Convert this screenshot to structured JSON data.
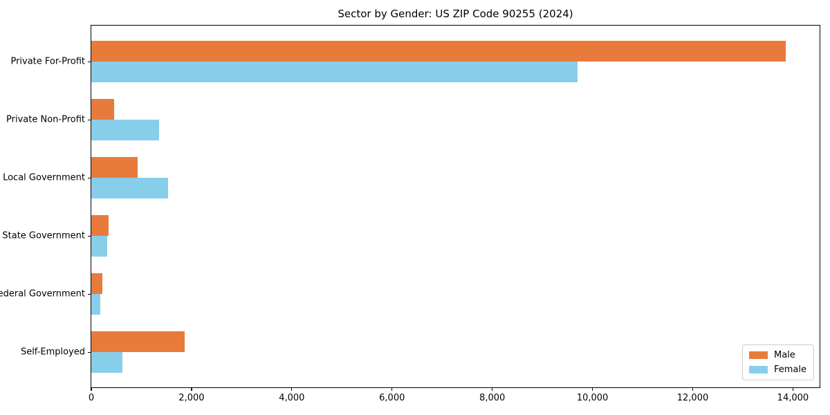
{
  "title": "Sector by Gender: US ZIP Code 90255 (2024)",
  "chart_data": {
    "type": "bar",
    "orientation": "horizontal",
    "title": "Sector by Gender: US ZIP Code 90255 (2024)",
    "categories": [
      "Private For-Profit",
      "Private Non-Profit",
      "Local Government",
      "State Government",
      "Federal Government",
      "Self-Employed"
    ],
    "series": [
      {
        "name": "Male",
        "color": "#e87b3c",
        "values": [
          13850,
          455,
          920,
          350,
          220,
          1860
        ]
      },
      {
        "name": "Female",
        "color": "#87ceeb",
        "values": [
          9700,
          1350,
          1530,
          315,
          180,
          620
        ]
      }
    ],
    "xlabel": "",
    "ylabel": "",
    "xlim": [
      0,
      14560
    ],
    "xticks": [
      0,
      2000,
      4000,
      6000,
      8000,
      10000,
      12000,
      14000
    ],
    "xtick_labels": [
      "0",
      "2,000",
      "4,000",
      "6,000",
      "8,000",
      "10,000",
      "12,000",
      "14,000"
    ],
    "grid": false,
    "legend_position": "lower right"
  }
}
